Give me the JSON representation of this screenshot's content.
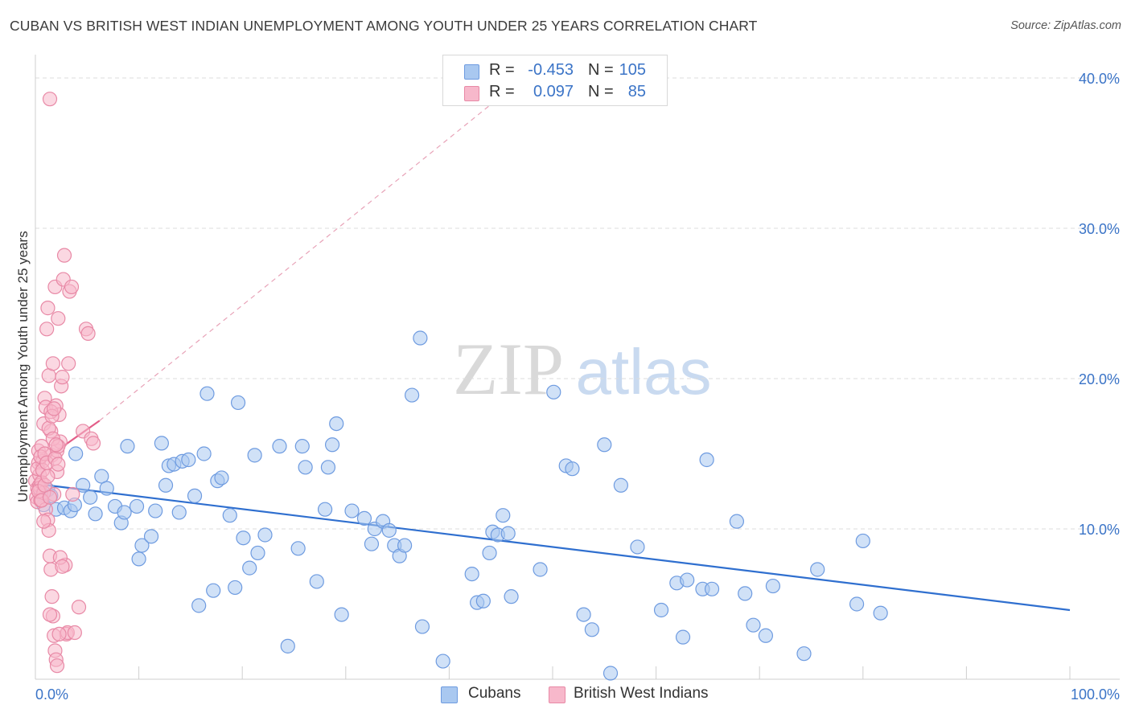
{
  "title": "CUBAN VS BRITISH WEST INDIAN UNEMPLOYMENT AMONG YOUTH UNDER 25 YEARS CORRELATION CHART",
  "source": "Source: ZipAtlas.com",
  "watermark": {
    "zip": "ZIP",
    "atlas": "atlas"
  },
  "legend": {
    "rows": [
      {
        "r_label": "R =",
        "r_value": "-0.453",
        "n_label": "N =",
        "n_value": "105",
        "color": "#a9c8f0",
        "border": "#6e9be0"
      },
      {
        "r_label": "R =",
        "r_value": "0.097",
        "n_label": "N =",
        "n_value": "85",
        "color": "#f7b8cb",
        "border": "#e889a6"
      }
    ]
  },
  "bottom_legend": [
    {
      "label": "Cubans",
      "color": "#a9c8f0",
      "border": "#6e9be0"
    },
    {
      "label": "British West Indians",
      "color": "#f7b8cb",
      "border": "#e889a6"
    }
  ],
  "chart_data": {
    "type": "scatter",
    "title": "CUBAN VS BRITISH WEST INDIAN UNEMPLOYMENT AMONG YOUTH UNDER 25 YEARS CORRELATION CHART",
    "xlabel": "",
    "ylabel": "Unemployment Among Youth under 25 years",
    "xlim": [
      0,
      100
    ],
    "ylim": [
      0,
      40
    ],
    "x_tick_labels": [
      "0.0%",
      "100.0%"
    ],
    "y_ticks": [
      10,
      20,
      30,
      40
    ],
    "y_tick_labels": [
      "10.0%",
      "20.0%",
      "30.0%",
      "40.0%"
    ],
    "grid": "horizontal dashed",
    "legend_position": "top-center",
    "series": [
      {
        "name": "Cubans",
        "color": "#6e9be0",
        "fill": "#a9c8f0",
        "trend": {
          "x": [
            0,
            100
          ],
          "y": [
            13.0,
            4.6
          ],
          "color": "#2f6fcf"
        },
        "points": [
          [
            0.6,
            12.3
          ],
          [
            0.8,
            11.6
          ],
          [
            1.2,
            12.6
          ],
          [
            1.5,
            12.2
          ],
          [
            2.0,
            11.3
          ],
          [
            2.8,
            11.4
          ],
          [
            3.4,
            11.2
          ],
          [
            3.8,
            11.6
          ],
          [
            3.9,
            15.0
          ],
          [
            4.6,
            12.9
          ],
          [
            5.3,
            12.1
          ],
          [
            5.8,
            11.0
          ],
          [
            6.4,
            13.5
          ],
          [
            6.9,
            12.7
          ],
          [
            7.7,
            11.5
          ],
          [
            8.3,
            10.4
          ],
          [
            8.6,
            11.1
          ],
          [
            8.9,
            15.5
          ],
          [
            9.8,
            11.5
          ],
          [
            10.0,
            8.0
          ],
          [
            10.3,
            8.9
          ],
          [
            11.2,
            9.5
          ],
          [
            11.6,
            11.2
          ],
          [
            12.2,
            15.7
          ],
          [
            12.6,
            12.9
          ],
          [
            12.9,
            14.2
          ],
          [
            13.4,
            14.3
          ],
          [
            13.9,
            11.1
          ],
          [
            14.2,
            14.5
          ],
          [
            14.8,
            14.6
          ],
          [
            15.4,
            12.2
          ],
          [
            15.8,
            4.9
          ],
          [
            16.3,
            15.0
          ],
          [
            16.6,
            19.0
          ],
          [
            17.2,
            5.9
          ],
          [
            17.6,
            13.2
          ],
          [
            18.0,
            13.4
          ],
          [
            18.8,
            10.9
          ],
          [
            19.3,
            6.1
          ],
          [
            19.6,
            18.4
          ],
          [
            20.1,
            9.4
          ],
          [
            20.7,
            7.4
          ],
          [
            21.2,
            14.9
          ],
          [
            21.5,
            8.4
          ],
          [
            22.2,
            9.6
          ],
          [
            23.6,
            15.5
          ],
          [
            24.4,
            2.2
          ],
          [
            25.4,
            8.7
          ],
          [
            25.8,
            15.5
          ],
          [
            26.1,
            14.1
          ],
          [
            27.2,
            6.5
          ],
          [
            28.0,
            11.3
          ],
          [
            28.3,
            14.1
          ],
          [
            28.7,
            15.6
          ],
          [
            29.1,
            17.0
          ],
          [
            29.6,
            4.3
          ],
          [
            30.6,
            11.2
          ],
          [
            31.8,
            10.7
          ],
          [
            32.5,
            9.0
          ],
          [
            32.8,
            10.0
          ],
          [
            33.6,
            10.5
          ],
          [
            34.2,
            9.9
          ],
          [
            34.7,
            8.9
          ],
          [
            35.2,
            8.2
          ],
          [
            35.7,
            8.9
          ],
          [
            36.4,
            18.9
          ],
          [
            37.2,
            22.7
          ],
          [
            37.4,
            3.5
          ],
          [
            39.4,
            1.2
          ],
          [
            42.2,
            7.0
          ],
          [
            42.7,
            5.1
          ],
          [
            43.3,
            5.2
          ],
          [
            43.9,
            8.4
          ],
          [
            44.2,
            9.8
          ],
          [
            44.7,
            9.6
          ],
          [
            45.2,
            10.9
          ],
          [
            45.7,
            9.7
          ],
          [
            46.0,
            5.5
          ],
          [
            48.8,
            7.3
          ],
          [
            50.1,
            19.1
          ],
          [
            51.3,
            14.2
          ],
          [
            51.9,
            14.0
          ],
          [
            53.0,
            4.3
          ],
          [
            53.8,
            3.3
          ],
          [
            55.0,
            15.6
          ],
          [
            55.6,
            0.4
          ],
          [
            56.6,
            12.9
          ],
          [
            58.2,
            8.8
          ],
          [
            60.5,
            4.6
          ],
          [
            62.0,
            6.4
          ],
          [
            62.6,
            2.8
          ],
          [
            63.0,
            6.6
          ],
          [
            64.5,
            6.0
          ],
          [
            64.9,
            14.6
          ],
          [
            65.4,
            6.0
          ],
          [
            67.8,
            10.5
          ],
          [
            68.6,
            5.7
          ],
          [
            69.4,
            3.6
          ],
          [
            70.6,
            2.9
          ],
          [
            71.3,
            6.2
          ],
          [
            74.3,
            1.7
          ],
          [
            75.6,
            7.3
          ],
          [
            79.4,
            5.0
          ],
          [
            80.0,
            9.2
          ],
          [
            81.7,
            4.4
          ]
        ]
      },
      {
        "name": "British West Indians",
        "color": "#e889a6",
        "fill": "#f7b8cb",
        "trend": {
          "x": [
            0,
            6.2
          ],
          "y": [
            14.2,
            17.2
          ],
          "color": "#e35d88"
        },
        "trend_extension": {
          "x": [
            6.2,
            44.5
          ],
          "y": [
            17.2,
            38.5
          ],
          "color": "#e8a3b8"
        },
        "points": [
          [
            0.0,
            13.2
          ],
          [
            0.1,
            12.1
          ],
          [
            0.2,
            12.7
          ],
          [
            0.2,
            11.8
          ],
          [
            0.3,
            14.4
          ],
          [
            0.3,
            15.2
          ],
          [
            0.4,
            13.6
          ],
          [
            0.4,
            12.9
          ],
          [
            0.5,
            11.9
          ],
          [
            0.6,
            15.5
          ],
          [
            0.7,
            14.5
          ],
          [
            0.8,
            17.0
          ],
          [
            0.9,
            18.7
          ],
          [
            1.0,
            18.1
          ],
          [
            1.1,
            23.3
          ],
          [
            1.2,
            24.7
          ],
          [
            1.3,
            20.2
          ],
          [
            1.4,
            38.6
          ],
          [
            1.5,
            16.5
          ],
          [
            1.6,
            14.9
          ],
          [
            1.7,
            21.0
          ],
          [
            1.8,
            12.3
          ],
          [
            1.9,
            26.1
          ],
          [
            2.0,
            18.2
          ],
          [
            2.1,
            15.2
          ],
          [
            2.2,
            24.0
          ],
          [
            2.3,
            17.6
          ],
          [
            2.4,
            15.8
          ],
          [
            2.5,
            19.5
          ],
          [
            2.6,
            20.1
          ],
          [
            2.7,
            26.6
          ],
          [
            2.8,
            28.2
          ],
          [
            2.9,
            7.6
          ],
          [
            3.0,
            3.0
          ],
          [
            3.1,
            3.1
          ],
          [
            3.2,
            21.0
          ],
          [
            3.3,
            25.8
          ],
          [
            0.4,
            12.7
          ],
          [
            0.6,
            13.1
          ],
          [
            0.8,
            12.4
          ],
          [
            1.0,
            11.3
          ],
          [
            1.2,
            10.6
          ],
          [
            1.3,
            9.9
          ],
          [
            1.4,
            8.2
          ],
          [
            1.5,
            7.3
          ],
          [
            1.6,
            5.5
          ],
          [
            1.7,
            4.2
          ],
          [
            1.8,
            2.9
          ],
          [
            1.9,
            1.9
          ],
          [
            2.0,
            1.3
          ],
          [
            2.1,
            0.9
          ],
          [
            2.3,
            3.0
          ],
          [
            2.4,
            8.1
          ],
          [
            3.5,
            26.1
          ],
          [
            3.6,
            12.3
          ],
          [
            3.8,
            3.1
          ],
          [
            4.2,
            4.8
          ],
          [
            4.6,
            16.5
          ],
          [
            4.9,
            23.3
          ],
          [
            5.1,
            23.0
          ],
          [
            5.4,
            16.0
          ],
          [
            5.6,
            15.7
          ],
          [
            0.2,
            14.0
          ],
          [
            0.5,
            14.8
          ],
          [
            0.7,
            13.9
          ],
          [
            0.9,
            15.0
          ],
          [
            1.1,
            14.4
          ],
          [
            1.3,
            16.7
          ],
          [
            1.5,
            17.8
          ],
          [
            1.7,
            16.0
          ],
          [
            1.9,
            14.7
          ],
          [
            2.1,
            13.8
          ],
          [
            2.2,
            15.5
          ],
          [
            0.3,
            12.5
          ],
          [
            0.6,
            11.9
          ],
          [
            0.9,
            12.9
          ],
          [
            1.2,
            13.5
          ],
          [
            1.4,
            12.1
          ],
          [
            1.6,
            17.5
          ],
          [
            1.8,
            18.0
          ],
          [
            2.0,
            15.6
          ],
          [
            2.2,
            14.3
          ],
          [
            0.8,
            10.5
          ],
          [
            1.4,
            4.3
          ],
          [
            2.6,
            7.5
          ]
        ]
      }
    ]
  }
}
